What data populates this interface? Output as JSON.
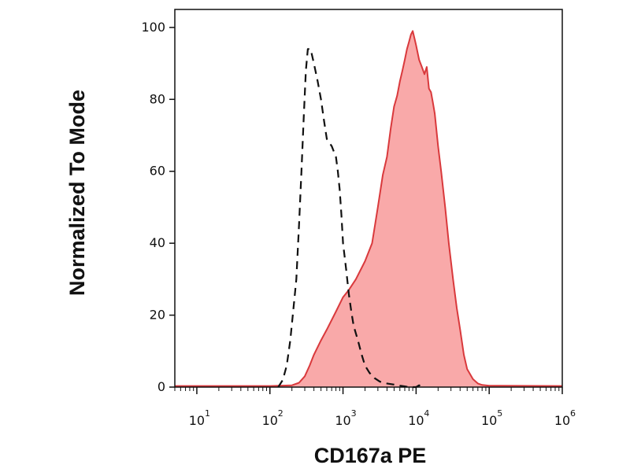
{
  "chart_data": {
    "type": "area",
    "title": "",
    "xlabel": "CD167a PE",
    "ylabel": "Normalized To Mode",
    "x_scale": "log",
    "xlim": [
      5,
      1000000
    ],
    "ylim": [
      0,
      105
    ],
    "y_ticks": [
      {
        "value": 0,
        "label": "0"
      },
      {
        "value": 20,
        "label": "20"
      },
      {
        "value": 40,
        "label": "40"
      },
      {
        "value": 60,
        "label": "60"
      },
      {
        "value": 80,
        "label": "80"
      },
      {
        "value": 100,
        "label": "100"
      }
    ],
    "x_ticks": [
      {
        "value": 10,
        "base": "10",
        "exp": "1"
      },
      {
        "value": 100,
        "base": "10",
        "exp": "2"
      },
      {
        "value": 1000,
        "base": "10",
        "exp": "3"
      },
      {
        "value": 10000,
        "base": "10",
        "exp": "4"
      },
      {
        "value": 100000,
        "base": "10",
        "exp": "5"
      },
      {
        "value": 1000000,
        "base": "10",
        "exp": "6"
      }
    ],
    "grid": false,
    "legend": "none",
    "series": [
      {
        "style": "filled",
        "fill": "#f9a9a9",
        "stroke": "#d9393c",
        "points": [
          [
            5,
            0.3
          ],
          [
            100,
            0.3
          ],
          [
            200,
            0.5
          ],
          [
            250,
            1.2
          ],
          [
            300,
            3
          ],
          [
            350,
            6
          ],
          [
            400,
            9
          ],
          [
            500,
            13
          ],
          [
            600,
            16
          ],
          [
            800,
            21
          ],
          [
            1000,
            25
          ],
          [
            1200,
            27
          ],
          [
            1500,
            30
          ],
          [
            2000,
            35
          ],
          [
            2500,
            40
          ],
          [
            3000,
            50
          ],
          [
            3500,
            59
          ],
          [
            4000,
            64
          ],
          [
            4500,
            72
          ],
          [
            5000,
            78
          ],
          [
            5500,
            81
          ],
          [
            6000,
            85
          ],
          [
            6500,
            88
          ],
          [
            7000,
            91
          ],
          [
            7500,
            94
          ],
          [
            8000,
            96
          ],
          [
            8500,
            98
          ],
          [
            9000,
            99
          ],
          [
            9500,
            97
          ],
          [
            10000,
            95
          ],
          [
            11000,
            91
          ],
          [
            12000,
            89
          ],
          [
            13000,
            87
          ],
          [
            14000,
            89
          ],
          [
            15000,
            83
          ],
          [
            16000,
            82
          ],
          [
            17000,
            79
          ],
          [
            18000,
            76
          ],
          [
            20000,
            67
          ],
          [
            22000,
            60
          ],
          [
            25000,
            50
          ],
          [
            28000,
            40
          ],
          [
            32000,
            30
          ],
          [
            36000,
            22
          ],
          [
            40000,
            16
          ],
          [
            45000,
            9
          ],
          [
            50000,
            5
          ],
          [
            60000,
            2.2
          ],
          [
            70000,
            1
          ],
          [
            80000,
            0.6
          ],
          [
            100000,
            0.4
          ],
          [
            1000000,
            0.3
          ]
        ]
      },
      {
        "style": "dashed",
        "stroke": "#111111",
        "points": [
          [
            130,
            0
          ],
          [
            150,
            2
          ],
          [
            170,
            6
          ],
          [
            190,
            13
          ],
          [
            210,
            22
          ],
          [
            230,
            30
          ],
          [
            250,
            45
          ],
          [
            270,
            60
          ],
          [
            290,
            75
          ],
          [
            310,
            88
          ],
          [
            330,
            94
          ],
          [
            360,
            94
          ],
          [
            400,
            90
          ],
          [
            450,
            85
          ],
          [
            500,
            80
          ],
          [
            550,
            74
          ],
          [
            600,
            69
          ],
          [
            700,
            67
          ],
          [
            800,
            64
          ],
          [
            850,
            60
          ],
          [
            900,
            55
          ],
          [
            950,
            48
          ],
          [
            1000,
            40
          ],
          [
            1100,
            33
          ],
          [
            1200,
            26
          ],
          [
            1300,
            21
          ],
          [
            1400,
            17
          ],
          [
            1600,
            13
          ],
          [
            1800,
            9
          ],
          [
            2000,
            6
          ],
          [
            2300,
            4
          ],
          [
            2700,
            2.5
          ],
          [
            3200,
            1.5
          ],
          [
            4000,
            1
          ],
          [
            5000,
            0.7
          ],
          [
            6000,
            0.4
          ],
          [
            7000,
            0.2
          ],
          [
            8000,
            0
          ],
          [
            10000,
            0
          ],
          [
            11000,
            0.5
          ],
          [
            12000,
            0
          ]
        ]
      }
    ]
  }
}
